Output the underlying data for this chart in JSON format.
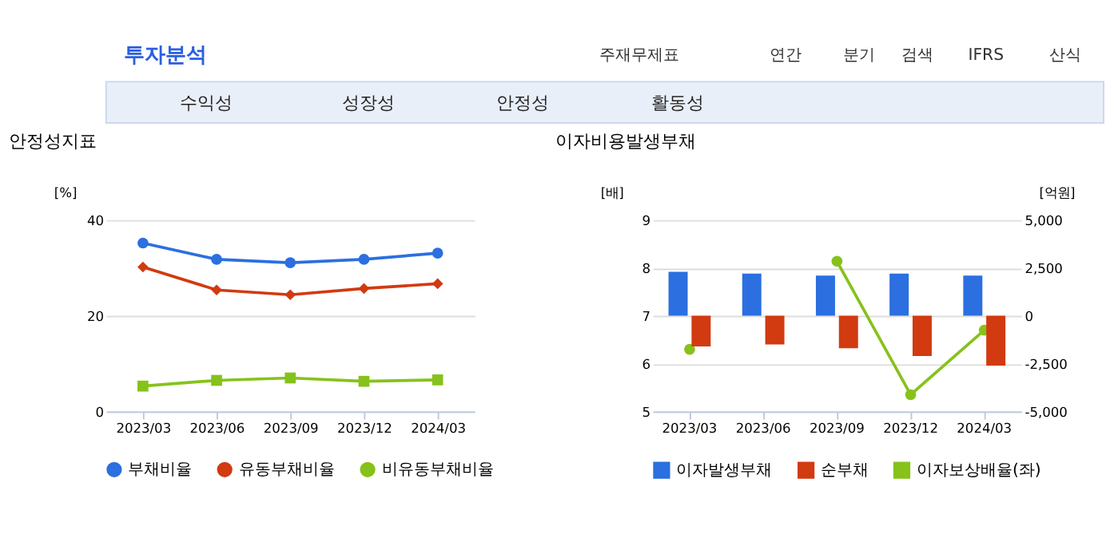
{
  "chart_data": [
    {
      "type": "line",
      "title": "안정성지표",
      "ylabel": "[%]",
      "categories": [
        "2023/03",
        "2023/06",
        "2023/09",
        "2023/12",
        "2024/03"
      ],
      "annotations": [
        "투자분석",
        "주재무제표",
        "연간",
        "분기",
        "검색",
        "IFRS",
        "산식",
        "수익성",
        "성장성",
        "안정성",
        "활동성"
      ],
      "series": [
        {
          "name": "부채비율",
          "color": "#2b6fe0",
          "marker": "circle",
          "values": [
            35.2,
            31.8,
            31.1,
            31.8,
            33.1
          ]
        },
        {
          "name": "유동부채비율",
          "color": "#d23a10",
          "marker": "diamond",
          "values": [
            30.2,
            25.4,
            24.4,
            25.7,
            26.7
          ]
        },
        {
          "name": "비유동부채비율",
          "color": "#86c21a",
          "marker": "square",
          "values": [
            5.3,
            6.5,
            7.0,
            6.3,
            6.6
          ]
        }
      ],
      "ylim": [
        0,
        40
      ],
      "yticks": [
        0,
        20,
        40
      ],
      "grid": "y",
      "legend": "bottom",
      "line_style": "solid"
    },
    {
      "type": "bar",
      "title": "이자비용발생부채",
      "ylabel": "[배]",
      "y2label": "[억원]",
      "categories": [
        "2023/03",
        "2023/06",
        "2023/09",
        "2023/12",
        "2024/03"
      ],
      "series": [
        {
          "name": "이자발생부채",
          "color": "#2b6fe0",
          "axis": "y2",
          "values": [
            2300,
            2200,
            2100,
            2200,
            2100
          ]
        },
        {
          "name": "순부채",
          "color": "#d23a10",
          "axis": "y2",
          "values": [
            -1600,
            -1500,
            -1700,
            -2100,
            -2600
          ]
        },
        {
          "name": "이자보상배율(좌)",
          "type": "line",
          "color": "#86c21a",
          "marker": "circle",
          "axis": "y",
          "values": [
            6.3,
            null,
            8.14,
            5.35,
            6.7
          ]
        }
      ],
      "ylim": [
        5,
        9
      ],
      "yticks": [
        5,
        6,
        7,
        8,
        9
      ],
      "y2lim": [
        -5000,
        5000
      ],
      "y2ticks": [
        {
          "value": -5000,
          "label": "-5,000"
        },
        {
          "value": -2500,
          "label": "-2,500"
        },
        {
          "value": 0,
          "label": "0"
        },
        {
          "value": 2500,
          "label": "2,500"
        },
        {
          "value": 5000,
          "label": "5,000"
        }
      ],
      "grid": "y",
      "legend": "bottom",
      "line_style": "solid"
    }
  ]
}
